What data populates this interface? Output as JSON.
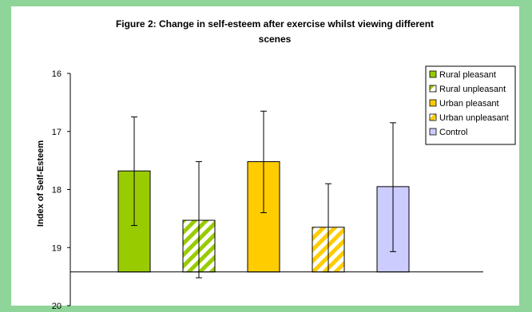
{
  "page": {
    "background": "#8fd498"
  },
  "chart_data": {
    "type": "bar",
    "title_lines": [
      "Figure 2: Change in self-esteem after exercise whilst viewing different",
      "scenes"
    ],
    "xlabel": "",
    "ylabel": "Index of Self-Esteem",
    "y_inverted": true,
    "ylim": [
      16,
      20
    ],
    "yticks": [
      "16",
      "17",
      "18",
      "19",
      "20"
    ],
    "baseline": 19.42,
    "grid": false,
    "legend_position": "top-right",
    "categories": [
      "Rural pleasant",
      "Rural unpleasant",
      "Urban pleasant",
      "Urban unpleasant",
      "Control"
    ],
    "values": [
      17.68,
      18.53,
      17.52,
      18.65,
      17.95
    ],
    "error_upper": [
      16.75,
      17.52,
      16.65,
      17.9,
      16.85
    ],
    "error_lower": [
      18.62,
      19.52,
      18.4,
      19.42,
      19.07
    ],
    "colors": [
      "#99cc00",
      "#99cc00",
      "#ffcc00",
      "#ffcc00",
      "#ccccff"
    ],
    "patterns": [
      "solid",
      "hatched",
      "solid",
      "hatched",
      "solid"
    ]
  }
}
